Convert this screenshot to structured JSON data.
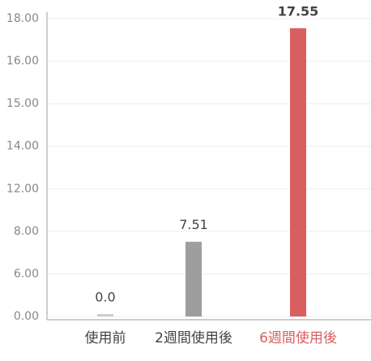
{
  "chart_data": {
    "type": "bar",
    "categories": [
      "使用前",
      "2週間使用後",
      "6週間使用後"
    ],
    "values": [
      0,
      7.51,
      17.55
    ],
    "value_labels": [
      "0.0",
      "7.51",
      "17.55"
    ],
    "colors": [
      "#cccccc",
      "#9e9e9e",
      "#d95f5f"
    ],
    "highlight_label_color": "#d95f5f",
    "ylim": [
      0,
      18
    ],
    "yticks": [
      {
        "value": 0,
        "label": "0.00"
      },
      {
        "value": 6,
        "label": "6.00"
      },
      {
        "value": 8,
        "label": "8.00"
      },
      {
        "value": 12,
        "label": "12.00"
      },
      {
        "value": 14,
        "label": "14.00"
      },
      {
        "value": 15,
        "label": "15.00"
      },
      {
        "value": 16,
        "label": "16.00"
      },
      {
        "value": 18,
        "label": "18.00"
      }
    ],
    "grid": true
  }
}
